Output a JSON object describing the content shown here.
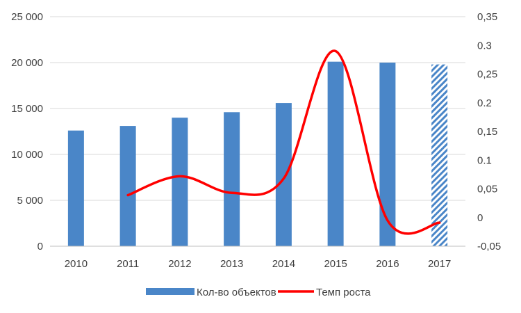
{
  "chart_data": {
    "type": "bar",
    "categories": [
      "2010",
      "2011",
      "2012",
      "2013",
      "2014",
      "2015",
      "2016",
      "2017"
    ],
    "series": [
      {
        "name": "Кол-во объектов",
        "type": "bar",
        "axis": "left",
        "color": "#4A86C8",
        "values": [
          12600,
          13100,
          14000,
          14600,
          15600,
          20100,
          20000,
          19800
        ],
        "hatched_categories": [
          "2017"
        ]
      },
      {
        "name": "Темп роста",
        "type": "line",
        "axis": "right",
        "color": "#FF0000",
        "smooth": true,
        "values": [
          null,
          0.039,
          0.072,
          0.043,
          0.068,
          0.29,
          -0.005,
          -0.009
        ]
      }
    ],
    "y_left": {
      "ylim": [
        0,
        25000
      ],
      "ticks": [
        0,
        5000,
        10000,
        15000,
        20000,
        25000
      ],
      "tick_labels": [
        "0",
        "5 000",
        "10 000",
        "15 000",
        "20 000",
        "25 000"
      ]
    },
    "y_right": {
      "ylim": [
        -0.05,
        0.35
      ],
      "ticks": [
        -0.05,
        0,
        0.05,
        0.1,
        0.15,
        0.2,
        0.25,
        0.3,
        0.35
      ],
      "tick_labels": [
        "-0,05",
        "0",
        "0,05",
        "0.1",
        "0,15",
        "0.2",
        "0,25",
        "0.3",
        "0,35"
      ]
    },
    "grid": true,
    "legend": "bottom",
    "title": "",
    "xlabel": "",
    "ylabel": ""
  }
}
